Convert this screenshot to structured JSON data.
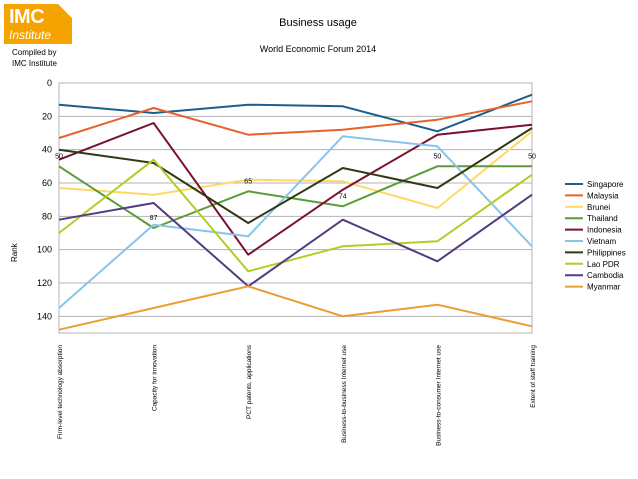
{
  "logo": {
    "line1": "IMC",
    "line2": "Institute"
  },
  "compiled_by": [
    "Compiled by",
    "IMC Institute"
  ],
  "chart_data": {
    "type": "line",
    "title": "Business usage",
    "subtitle": "World Economic Forum 2014",
    "xlabel": "",
    "ylabel": "Rank",
    "ylim": [
      0,
      150
    ],
    "y_inverted": true,
    "y_ticks": [
      0,
      20,
      40,
      60,
      80,
      100,
      120,
      140
    ],
    "grid": true,
    "legend_position": "right",
    "categories": [
      "Firm-level technology absorption",
      "Capacity for innovation",
      "PCT patents, applications",
      "Business-to-business Internet use",
      "Business-to-consumer Internet use",
      "Extent of staff training"
    ],
    "series": [
      {
        "name": "Singapore",
        "color": "#1a5f8e",
        "values": [
          13,
          18,
          13,
          14,
          29,
          7
        ]
      },
      {
        "name": "Malaysia",
        "color": "#e8612c",
        "values": [
          33,
          15,
          31,
          28,
          22,
          11
        ]
      },
      {
        "name": "Brunei",
        "color": "#ffd966",
        "values": [
          63,
          67,
          58,
          59,
          75,
          29
        ]
      },
      {
        "name": "Thailand",
        "color": "#5c9a3a",
        "values": [
          50,
          87,
          65,
          74,
          50,
          50
        ]
      },
      {
        "name": "Indonesia",
        "color": "#7a1130",
        "values": [
          46,
          24,
          103,
          64,
          31,
          25
        ]
      },
      {
        "name": "Vietnam",
        "color": "#89c4ea",
        "values": [
          135,
          85,
          92,
          32,
          38,
          98
        ]
      },
      {
        "name": "Philippines",
        "color": "#2f3a12",
        "values": [
          40,
          48,
          84,
          51,
          63,
          27
        ]
      },
      {
        "name": "Lao PDR",
        "color": "#b5cc28",
        "values": [
          90,
          46,
          113,
          98,
          95,
          55
        ]
      },
      {
        "name": "Cambodia",
        "color": "#553b7f",
        "values": [
          82,
          72,
          122,
          82,
          107,
          67
        ]
      },
      {
        "name": "Myanmar",
        "color": "#eb9d32",
        "values": [
          148,
          135,
          122,
          140,
          133,
          146
        ]
      }
    ],
    "data_labels": [
      {
        "text": "50",
        "series": "Thailand",
        "category_index": 0
      },
      {
        "text": "87",
        "series": "Thailand",
        "category_index": 1
      },
      {
        "text": "65",
        "series": "Thailand",
        "category_index": 2
      },
      {
        "text": "74",
        "series": "Thailand",
        "category_index": 3
      },
      {
        "text": "50",
        "series": "Thailand",
        "category_index": 4
      },
      {
        "text": "50",
        "series": "Thailand",
        "category_index": 5
      }
    ]
  }
}
